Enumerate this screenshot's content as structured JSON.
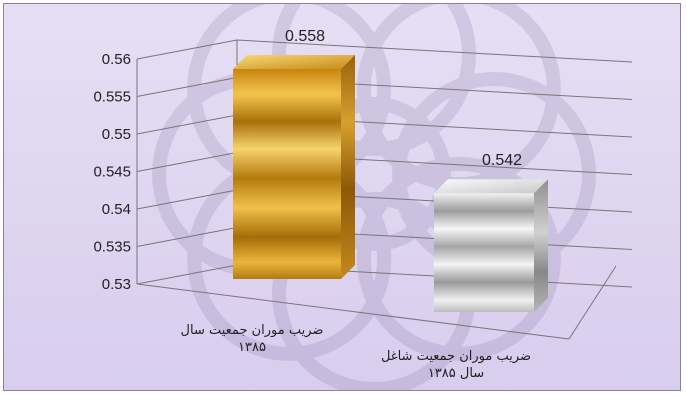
{
  "chart_data": {
    "type": "bar",
    "categories": [
      [
        "ضریب موران جمعیت سال",
        "۱۳۸۵"
      ],
      [
        "ضریب موران جمعیت شاغل",
        "سال ۱۳۸۵"
      ]
    ],
    "values": [
      0.558,
      0.542
    ],
    "data_labels": [
      "0.558",
      "0.542"
    ],
    "ylim": [
      0.53,
      0.56
    ],
    "yticks": [
      "0.53",
      "0.535",
      "0.54",
      "0.545",
      "0.55",
      "0.555",
      "0.56"
    ],
    "grid": true,
    "legend": "none",
    "colors": {
      "background_top": "#e6dff4",
      "background_bottom": "#d8cdee",
      "bar_1": "#e0a020",
      "bar_2": "#dcdcdc",
      "grid": "#777777"
    },
    "watermark": "decorative star pattern"
  }
}
